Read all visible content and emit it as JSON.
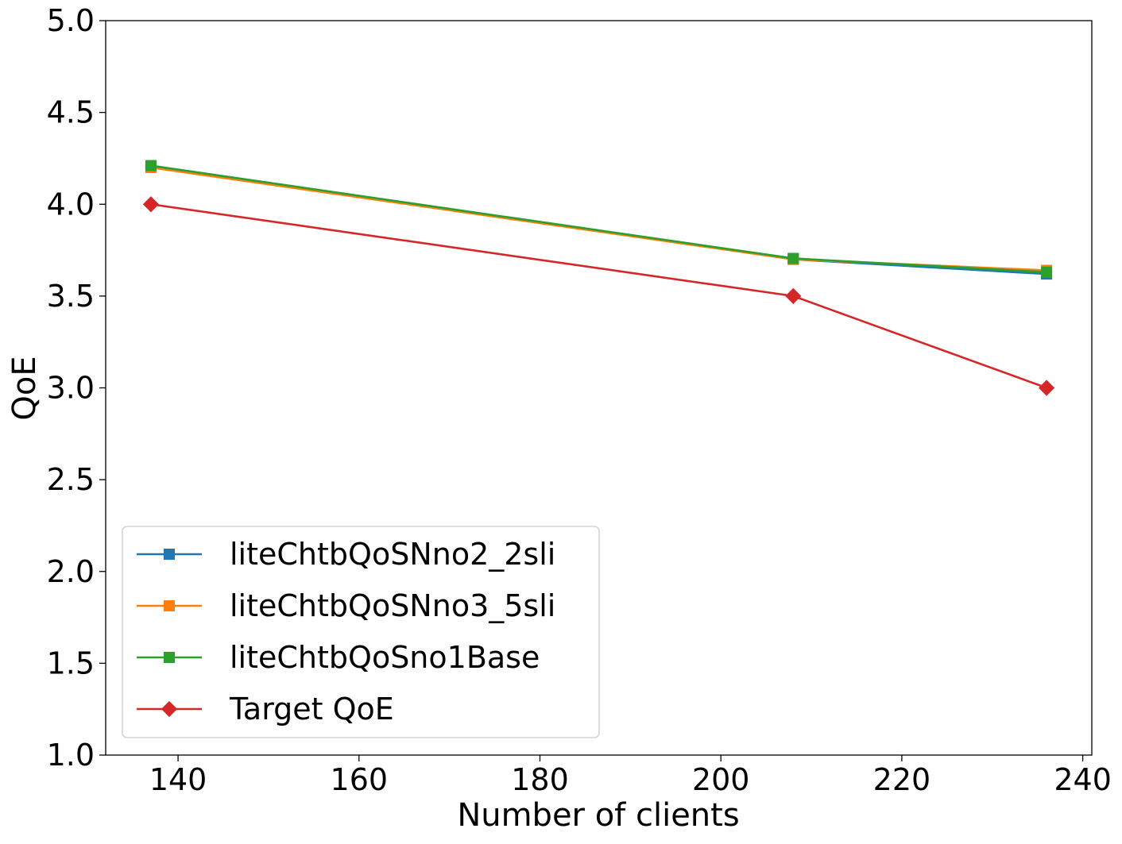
{
  "chart_data": {
    "type": "line",
    "title": "",
    "xlabel": "Number of clients",
    "ylabel": "QoE",
    "xlim": [
      132,
      241
    ],
    "ylim": [
      1.0,
      5.0
    ],
    "xticks": [
      140,
      160,
      180,
      200,
      220,
      240
    ],
    "yticks": [
      1.0,
      1.5,
      2.0,
      2.5,
      3.0,
      3.5,
      4.0,
      4.5,
      5.0
    ],
    "x": [
      137,
      208,
      236
    ],
    "grid": false,
    "legend_position": "lower-left",
    "series": [
      {
        "name": "liteChtbQoSNno2_2sli",
        "color": "#1f77b4",
        "marker": "square",
        "values": [
          4.21,
          3.7,
          3.62
        ]
      },
      {
        "name": "liteChtbQoSNno3_5sli",
        "color": "#ff7f0e",
        "marker": "square",
        "values": [
          4.2,
          3.7,
          3.64
        ]
      },
      {
        "name": "liteChtbQoSno1Base",
        "color": "#2ca02c",
        "marker": "square",
        "values": [
          4.21,
          3.705,
          3.63
        ]
      },
      {
        "name": "Target QoE",
        "color": "#d62728",
        "marker": "diamond",
        "values": [
          4.0,
          3.5,
          3.0
        ]
      }
    ]
  }
}
